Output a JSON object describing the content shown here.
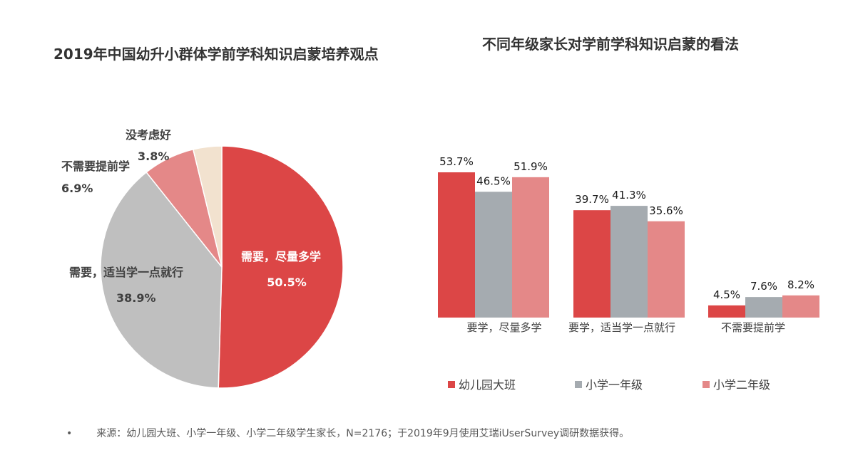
{
  "source": {
    "bullet": "•",
    "text": "来源：幼儿园大班、小学一年级、小学二年级学生家长，N=2176；于2019年9月使用艾瑞iUserSurvey调研数据获得。"
  },
  "chart_data": [
    {
      "type": "pie",
      "title": "2019年中国幼升小群体学前学科知识启蒙培养观点",
      "slices": [
        {
          "label": "需要，尽量多学",
          "value": 50.5,
          "value_label": "50.5%",
          "color": "#dc4646"
        },
        {
          "label": "需要，适当学一点就行",
          "value": 38.9,
          "value_label": "38.9%",
          "color": "#bfbfbf"
        },
        {
          "label": "不需要提前学",
          "value": 6.9,
          "value_label": "6.9%",
          "color": "#e48888"
        },
        {
          "label": "没考虑好",
          "value": 3.8,
          "value_label": "3.8%",
          "color": "#f2e2cf"
        }
      ]
    },
    {
      "type": "bar",
      "title": "不同年级家长对学前学科知识启蒙的看法",
      "categories": [
        "要学，尽量多学",
        "要学，适当学一点就行",
        "不需要提前学"
      ],
      "ylim": [
        0,
        60
      ],
      "grid": false,
      "legend_position": "bottom",
      "series": [
        {
          "name": "幼儿园大班",
          "color": "#dc4646",
          "values": [
            53.7,
            39.7,
            4.5
          ],
          "labels": [
            "53.7%",
            "39.7%",
            "4.5%"
          ]
        },
        {
          "name": "小学一年级",
          "color": "#a5abb0",
          "values": [
            46.5,
            41.3,
            7.6
          ],
          "labels": [
            "46.5%",
            "41.3%",
            "7.6%"
          ]
        },
        {
          "name": "小学二年级",
          "color": "#e48888",
          "values": [
            51.9,
            35.6,
            8.2
          ],
          "labels": [
            "51.9%",
            "35.6%",
            "8.2%"
          ]
        }
      ]
    }
  ]
}
